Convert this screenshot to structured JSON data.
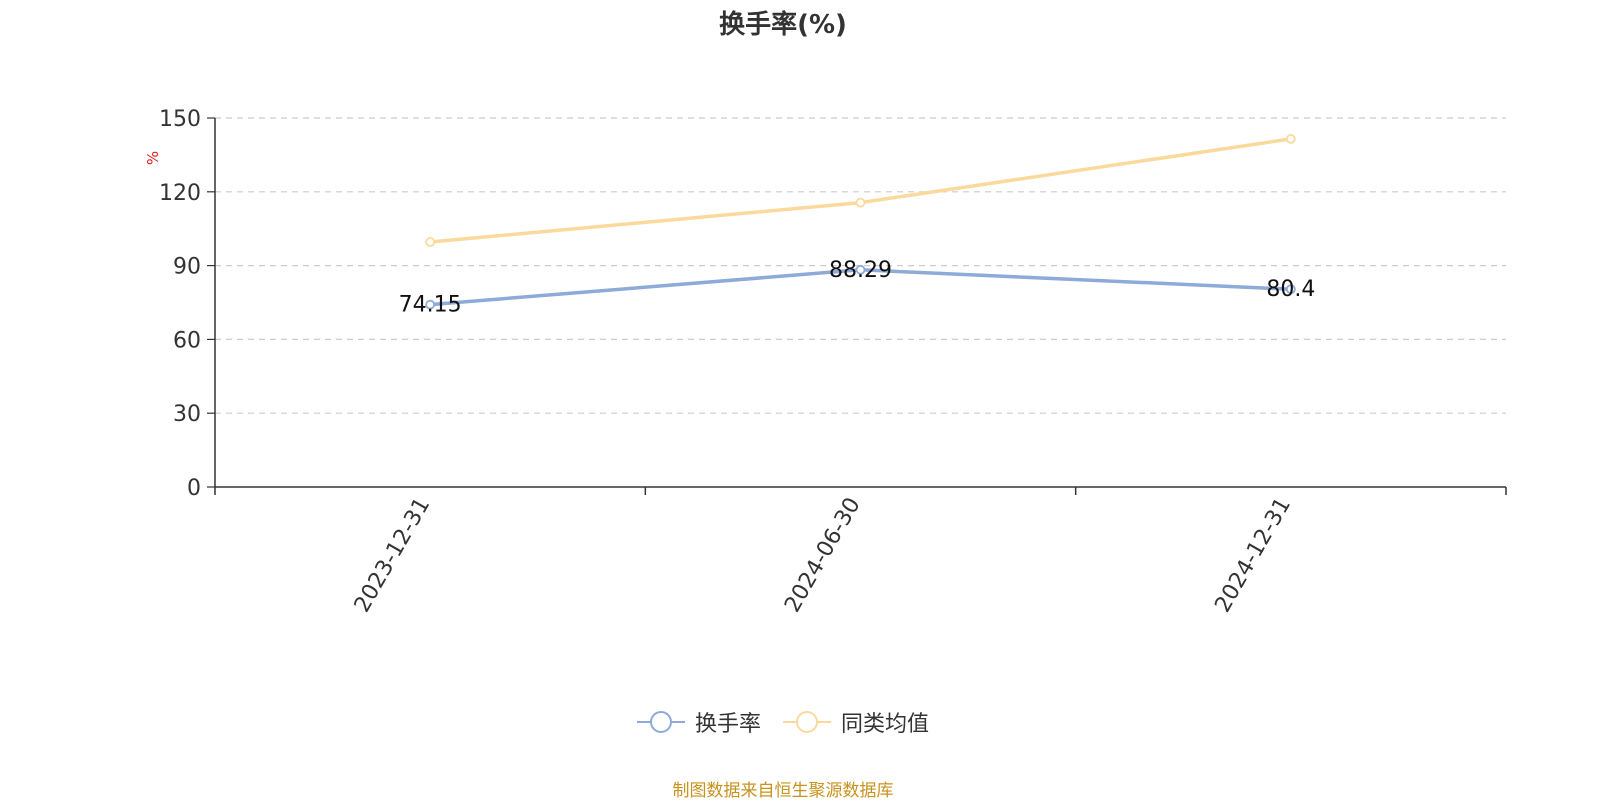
{
  "chart_data": {
    "type": "line",
    "title": "换手率(%)",
    "ylabel": "%",
    "xlabel": "",
    "categories": [
      "2023-12-31",
      "2024-06-30",
      "2024-12-31"
    ],
    "yticks": [
      0,
      30,
      60,
      90,
      120,
      150
    ],
    "ylim": [
      0,
      150
    ],
    "grid": "horizontal dashed",
    "legend_position": "bottom",
    "series": [
      {
        "name": "换手率",
        "values": [
          74.15,
          88.29,
          80.4
        ],
        "color": "#8eaad8",
        "labels": [
          "74.15",
          "88.29",
          "80.4"
        ]
      },
      {
        "name": "同类均值",
        "values": [
          99.6,
          115.6,
          141.5
        ],
        "color": "#fbd99c"
      }
    ]
  },
  "source_note": "制图数据来自恒生聚源数据库"
}
